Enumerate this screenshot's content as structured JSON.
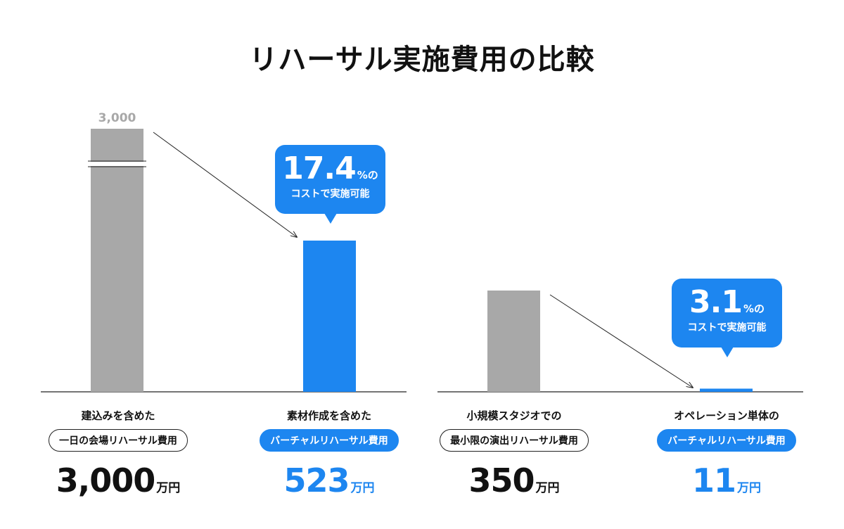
{
  "title": "リハーサル実施費用の比較",
  "colors": {
    "gray": "#a8a8a8",
    "blue": "#1d86f0",
    "line": "#222222"
  },
  "chart_data": [
    {
      "type": "bar",
      "categories": [
        "一日の会場リハーサル費用",
        "バーチャルリハーサル費用"
      ],
      "values": [
        3000,
        523
      ],
      "unit": "万円",
      "broken_axis": true,
      "broken_bar_label": "3,000",
      "bars": [
        {
          "desc": "建込みを含めた",
          "pill": "一日の会場リハーサル費用",
          "value_text": "3,000",
          "unit": "万円",
          "color": "gray"
        },
        {
          "desc": "素材作成を含めた",
          "pill": "バーチャルリハーサル費用",
          "value_text": "523",
          "unit": "万円",
          "color": "blue"
        }
      ],
      "callout": {
        "pct": "17.4",
        "pct_suffix": "%の",
        "sub": "コストで実施可能"
      }
    },
    {
      "type": "bar",
      "categories": [
        "最小限の演出リハーサル費用",
        "バーチャルリハーサル費用"
      ],
      "values": [
        350,
        11
      ],
      "unit": "万円",
      "bars": [
        {
          "desc": "小規模スタジオでの",
          "pill": "最小限の演出リハーサル費用",
          "value_text": "350",
          "unit": "万円",
          "color": "gray"
        },
        {
          "desc": "オペレーション単体の",
          "pill": "バーチャルリハーサル費用",
          "value_text": "11",
          "unit": "万円",
          "color": "blue"
        }
      ],
      "callout": {
        "pct": "3.1",
        "pct_suffix": "%の",
        "sub": "コストで実施可能"
      }
    }
  ]
}
